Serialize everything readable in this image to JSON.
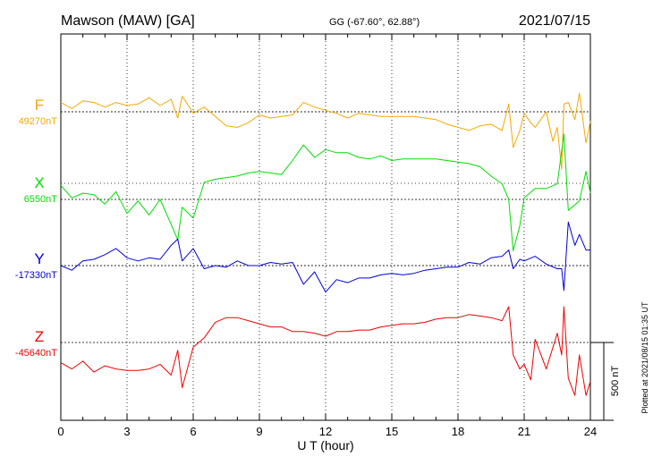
{
  "header": {
    "station": "Mawson (MAW)  [GA]",
    "coords": "GG (-67.60°,  62.88°)",
    "date": "2021/07/15"
  },
  "side_note": "Plotted at 2021/08/15 01:35 UT",
  "scale_label": "500 nT",
  "chart_data": {
    "type": "line",
    "xlabel": "U T (hour)",
    "xlim": [
      0,
      24
    ],
    "xticks": [
      0,
      3,
      6,
      9,
      12,
      15,
      18,
      21,
      24
    ],
    "grid": true,
    "scale_bar_nT": 500,
    "series": [
      {
        "name": "F",
        "baseline_label": "49270nT",
        "baseline_nT": 49270,
        "color": "#f5a800",
        "x": [
          0,
          0.5,
          1,
          1.5,
          2,
          2.5,
          3,
          3.5,
          4,
          4.5,
          5,
          5.3,
          5.5,
          6,
          6.5,
          7,
          7.5,
          8,
          8.5,
          9,
          9.5,
          10,
          10.5,
          11,
          11.5,
          12,
          12.5,
          13,
          13.5,
          14,
          14.5,
          15,
          15.5,
          16,
          16.5,
          17,
          17.5,
          18,
          18.5,
          19,
          19.5,
          20,
          20.3,
          20.5,
          20.8,
          21,
          21.3,
          21.5,
          22,
          22.3,
          22.5,
          22.7,
          22.8,
          23,
          23.3,
          23.5,
          23.8,
          24
        ],
        "y": [
          49330,
          49290,
          49340,
          49330,
          49300,
          49330,
          49310,
          49320,
          49360,
          49310,
          49350,
          49230,
          49370,
          49260,
          49300,
          49240,
          49180,
          49170,
          49200,
          49250,
          49230,
          49240,
          49250,
          49330,
          49300,
          49280,
          49260,
          49230,
          49260,
          49250,
          49240,
          49240,
          49240,
          49240,
          49230,
          49220,
          49190,
          49170,
          49150,
          49180,
          49190,
          49150,
          49320,
          49040,
          49150,
          49260,
          49200,
          49170,
          49270,
          49080,
          49170,
          48900,
          49320,
          49330,
          49220,
          49390,
          49070,
          49210
        ]
      },
      {
        "name": "X",
        "baseline_label": "6550nT",
        "baseline_nT": 6550,
        "color": "#00dd00",
        "x": [
          0,
          0.5,
          1,
          1.5,
          2,
          2.5,
          3,
          3.5,
          4,
          4.5,
          5,
          5.3,
          5.5,
          6,
          6.5,
          7,
          7.5,
          8,
          8.5,
          9,
          9.5,
          10,
          10.5,
          11,
          11.5,
          12,
          12.5,
          13,
          13.5,
          14,
          14.5,
          15,
          15.5,
          16,
          16.5,
          17,
          17.5,
          18,
          18.5,
          19,
          19.5,
          20,
          20.3,
          20.5,
          20.8,
          21,
          21.5,
          22,
          22.5,
          22.8,
          23,
          23.5,
          23.8,
          24
        ],
        "y": [
          6640,
          6560,
          6590,
          6580,
          6520,
          6600,
          6460,
          6540,
          6450,
          6550,
          6390,
          6290,
          6500,
          6430,
          6660,
          6680,
          6690,
          6700,
          6720,
          6730,
          6720,
          6710,
          6800,
          6900,
          6820,
          6870,
          6850,
          6850,
          6820,
          6810,
          6830,
          6800,
          6810,
          6810,
          6810,
          6810,
          6800,
          6790,
          6780,
          6760,
          6700,
          6650,
          6550,
          6220,
          6380,
          6560,
          6620,
          6620,
          6650,
          6970,
          6480,
          6540,
          6730,
          6590
        ]
      },
      {
        "name": "Y",
        "baseline_label": "-17330nT",
        "baseline_nT": -17330,
        "color": "#0000dd",
        "x": [
          0,
          0.5,
          1,
          1.5,
          2,
          2.5,
          3,
          3.5,
          4,
          4.5,
          5,
          5.3,
          5.5,
          6,
          6.5,
          7,
          7.5,
          8,
          8.5,
          9,
          9.5,
          10,
          10.5,
          11,
          11.5,
          12,
          12.5,
          13,
          13.5,
          14,
          14.5,
          15,
          15.5,
          16,
          16.5,
          17,
          17.5,
          18,
          18.5,
          19,
          19.5,
          20,
          20.3,
          20.5,
          20.8,
          21,
          21.5,
          22,
          22.5,
          22.7,
          22.8,
          23,
          23.3,
          23.5,
          23.8,
          24
        ],
        "y": [
          -17330,
          -17360,
          -17300,
          -17290,
          -17260,
          -17220,
          -17280,
          -17300,
          -17280,
          -17290,
          -17200,
          -17160,
          -17300,
          -17220,
          -17350,
          -17330,
          -17340,
          -17300,
          -17330,
          -17330,
          -17310,
          -17320,
          -17310,
          -17450,
          -17370,
          -17500,
          -17420,
          -17440,
          -17410,
          -17410,
          -17390,
          -17380,
          -17390,
          -17380,
          -17360,
          -17350,
          -17340,
          -17340,
          -17310,
          -17320,
          -17280,
          -17270,
          -17230,
          -17350,
          -17290,
          -17300,
          -17270,
          -17320,
          -17350,
          -17350,
          -17490,
          -17050,
          -17200,
          -17130,
          -17230,
          -17230
        ]
      },
      {
        "name": "Z",
        "baseline_label": "-45640nT",
        "baseline_nT": -45640,
        "color": "#ee0000",
        "x": [
          0,
          0.5,
          1,
          1.5,
          2,
          2.5,
          3,
          3.5,
          4,
          4.5,
          5,
          5.3,
          5.5,
          6,
          6.5,
          7,
          7.5,
          8,
          8.5,
          9,
          9.5,
          10,
          10.5,
          11,
          11.5,
          12,
          12.5,
          13,
          13.5,
          14,
          14.5,
          15,
          15.5,
          16,
          16.5,
          17,
          17.5,
          18,
          18.5,
          19,
          19.5,
          20,
          20.3,
          20.5,
          20.8,
          21,
          21.3,
          21.5,
          22,
          22.5,
          22.7,
          22.8,
          23,
          23.3,
          23.5,
          23.8,
          24
        ],
        "y": [
          -45770,
          -45810,
          -45760,
          -45830,
          -45790,
          -45810,
          -45820,
          -45820,
          -45810,
          -45780,
          -45850,
          -45690,
          -45930,
          -45670,
          -45610,
          -45510,
          -45480,
          -45480,
          -45500,
          -45520,
          -45540,
          -45540,
          -45570,
          -45570,
          -45580,
          -45600,
          -45570,
          -45570,
          -45560,
          -45560,
          -45540,
          -45530,
          -45520,
          -45520,
          -45510,
          -45490,
          -45480,
          -45480,
          -45460,
          -45470,
          -45480,
          -45500,
          -45410,
          -45720,
          -45810,
          -45780,
          -45880,
          -45620,
          -45810,
          -45580,
          -45720,
          -45410,
          -45870,
          -45980,
          -45720,
          -45980,
          -45890
        ]
      }
    ]
  }
}
